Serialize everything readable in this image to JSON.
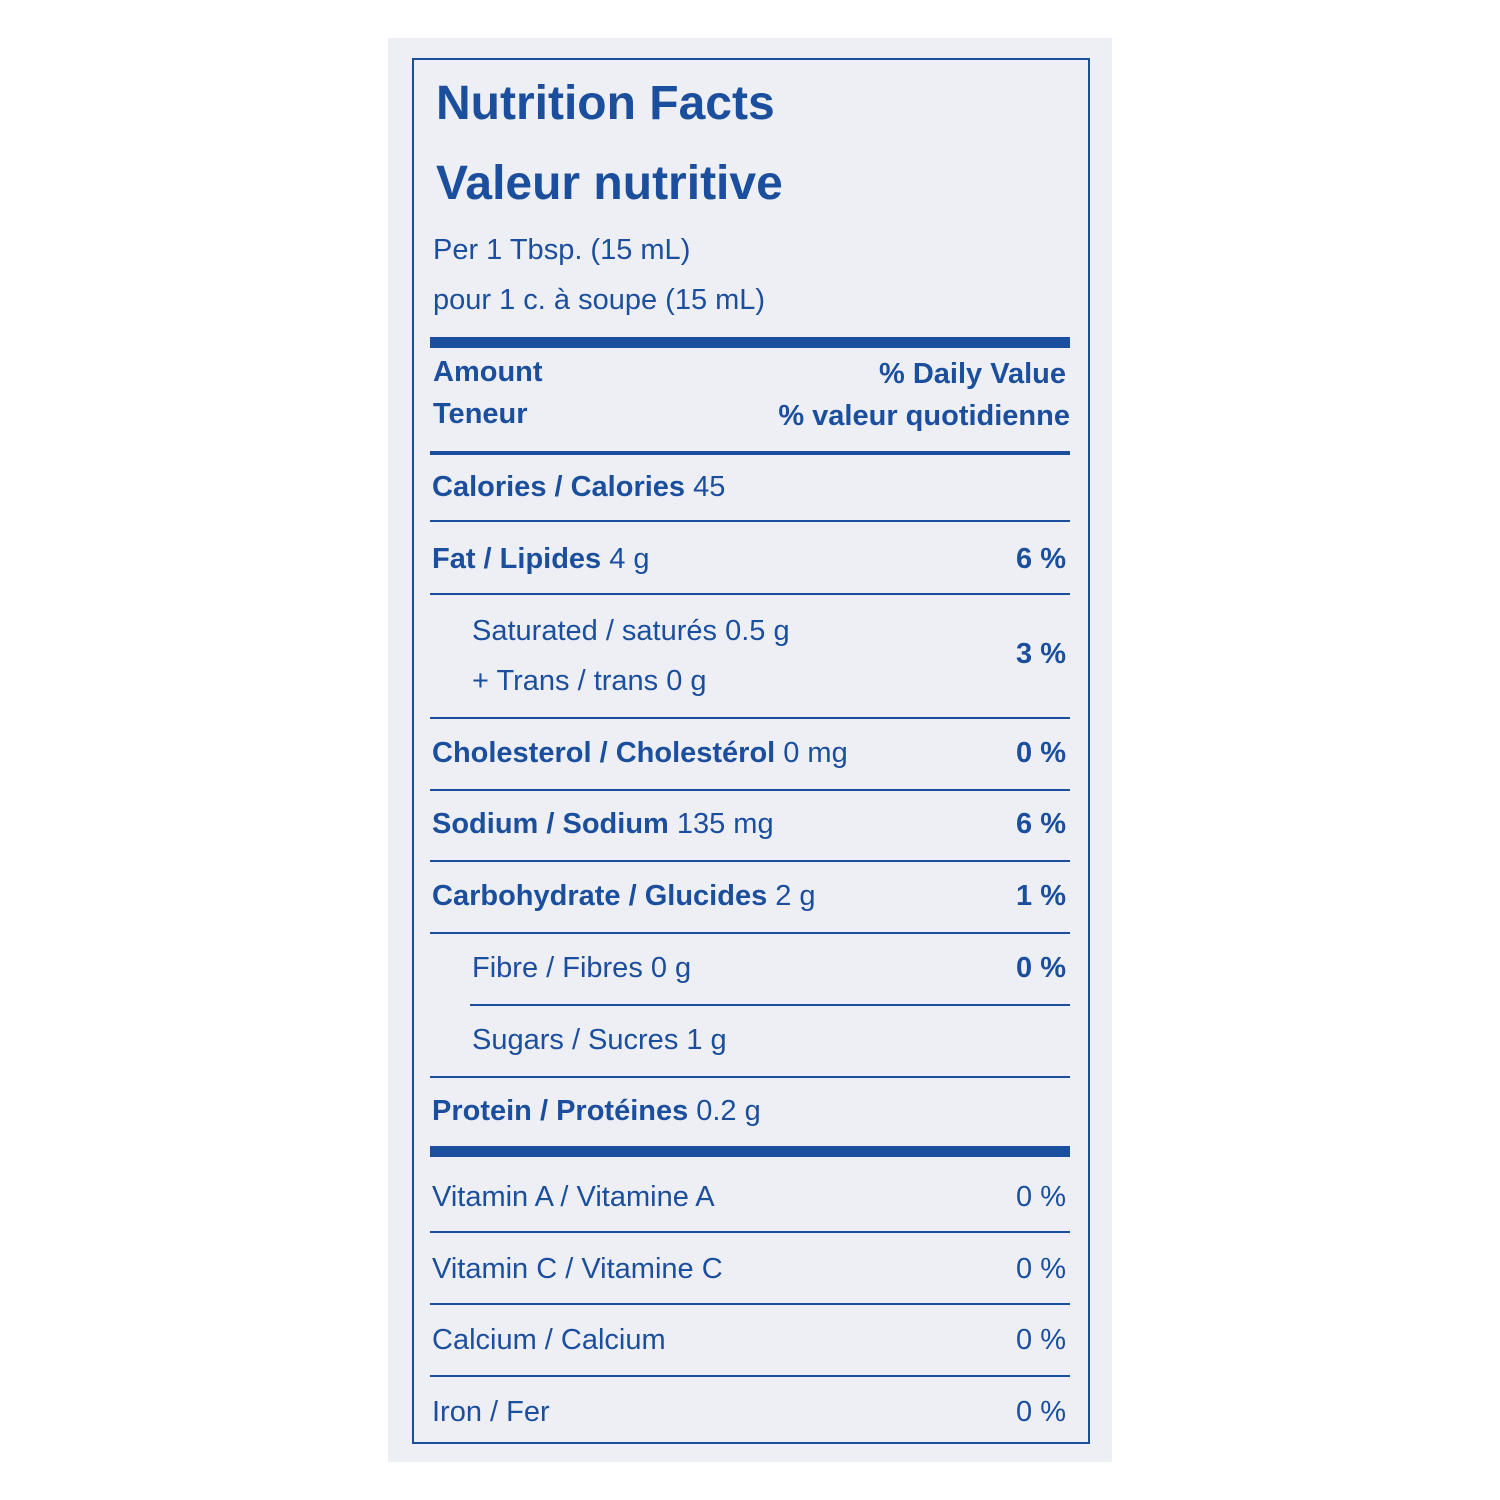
{
  "title": [
    "Nutrition Facts",
    "Valeur nutritive"
  ],
  "serving": [
    "Per 1 Tbsp. (15 mL)",
    "pour 1 c. à soupe (15 mL)"
  ],
  "header": {
    "amount": [
      "Amount",
      "Teneur"
    ],
    "daily_value": [
      "% Daily Value",
      "% valeur quotidienne"
    ]
  },
  "rows": [
    {
      "name": "Calories / Calories",
      "amount": "45"
    },
    {
      "name": "Fat / Lipides",
      "amount": "4 g",
      "dv": "6 %"
    },
    {
      "lines": [
        "Saturated / saturés 0.5 g",
        "+ Trans / trans 0 g"
      ],
      "dv": "3 %"
    },
    {
      "name": "Cholesterol / Cholestérol",
      "amount": "0 mg",
      "dv": "0 %"
    },
    {
      "name": "Sodium / Sodium",
      "amount": "135 mg",
      "dv": "6 %"
    },
    {
      "name": "Carbohydrate / Glucides",
      "amount": "2 g",
      "dv": "1 %"
    },
    {
      "name": "Fibre / Fibres 0 g",
      "dv": "0 %"
    },
    {
      "name": "Sugars / Sucres 1 g"
    },
    {
      "name": "Protein / Protéines",
      "amount": "0.2 g"
    },
    {
      "name": "Vitamin A / Vitamine A",
      "dv": "0 %"
    },
    {
      "name": "Vitamin C / Vitamine C",
      "dv": "0 %"
    },
    {
      "name": "Calcium / Calcium",
      "dv": "0 %"
    },
    {
      "name": "Iron / Fer",
      "dv": "0 %"
    }
  ]
}
